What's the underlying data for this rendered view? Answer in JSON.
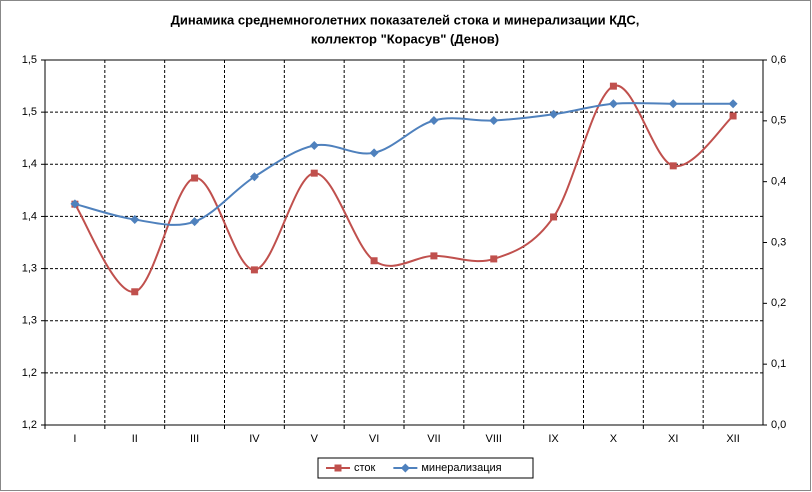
{
  "chart_data": {
    "type": "line",
    "title": [
      "Динамика среднемноголетних показателей стока и минерализации КДС,",
      "коллектор \"Корасув\" (Денов)"
    ],
    "categories": [
      "I",
      "II",
      "III",
      "IV",
      "V",
      "VI",
      "VII",
      "VIII",
      "IX",
      "X",
      "XI",
      "XII"
    ],
    "series": [
      {
        "name": "сток",
        "color": "#c0504d",
        "marker": "square",
        "axis": "y2",
        "values": [
          0.363,
          0.219,
          0.406,
          0.255,
          0.414,
          0.27,
          0.278,
          0.273,
          0.342,
          0.557,
          0.426,
          0.508
        ]
      },
      {
        "name": "минерализация",
        "color": "#4f81bd",
        "marker": "diamond",
        "values": [
          1.362,
          1.347,
          1.345,
          1.388,
          1.418,
          1.411,
          1.442,
          1.442,
          1.448,
          1.458,
          1.458,
          1.458
        ]
      }
    ],
    "ylim": [
      1.15,
      1.5
    ],
    "yticks": [
      {
        "value": 1.15,
        "label": "1,2"
      },
      {
        "value": 1.2,
        "label": "1,2"
      },
      {
        "value": 1.25,
        "label": "1,3"
      },
      {
        "value": 1.3,
        "label": "1,3"
      },
      {
        "value": 1.35,
        "label": "1,4"
      },
      {
        "value": 1.4,
        "label": "1,4"
      },
      {
        "value": 1.45,
        "label": "1,5"
      },
      {
        "value": 1.5,
        "label": "1,5"
      }
    ],
    "y2lim": [
      0,
      0.6
    ],
    "y2ticks": [
      {
        "value": 0,
        "label": "0,0"
      },
      {
        "value": 0.1,
        "label": "0,1"
      },
      {
        "value": 0.2,
        "label": "0,2"
      },
      {
        "value": 0.3,
        "label": "0,3"
      },
      {
        "value": 0.4,
        "label": "0,4"
      },
      {
        "value": 0.5,
        "label": "0,5"
      },
      {
        "value": 0.6,
        "label": "0,6"
      }
    ],
    "grid": true,
    "legend": "bottom",
    "smooth": true
  }
}
